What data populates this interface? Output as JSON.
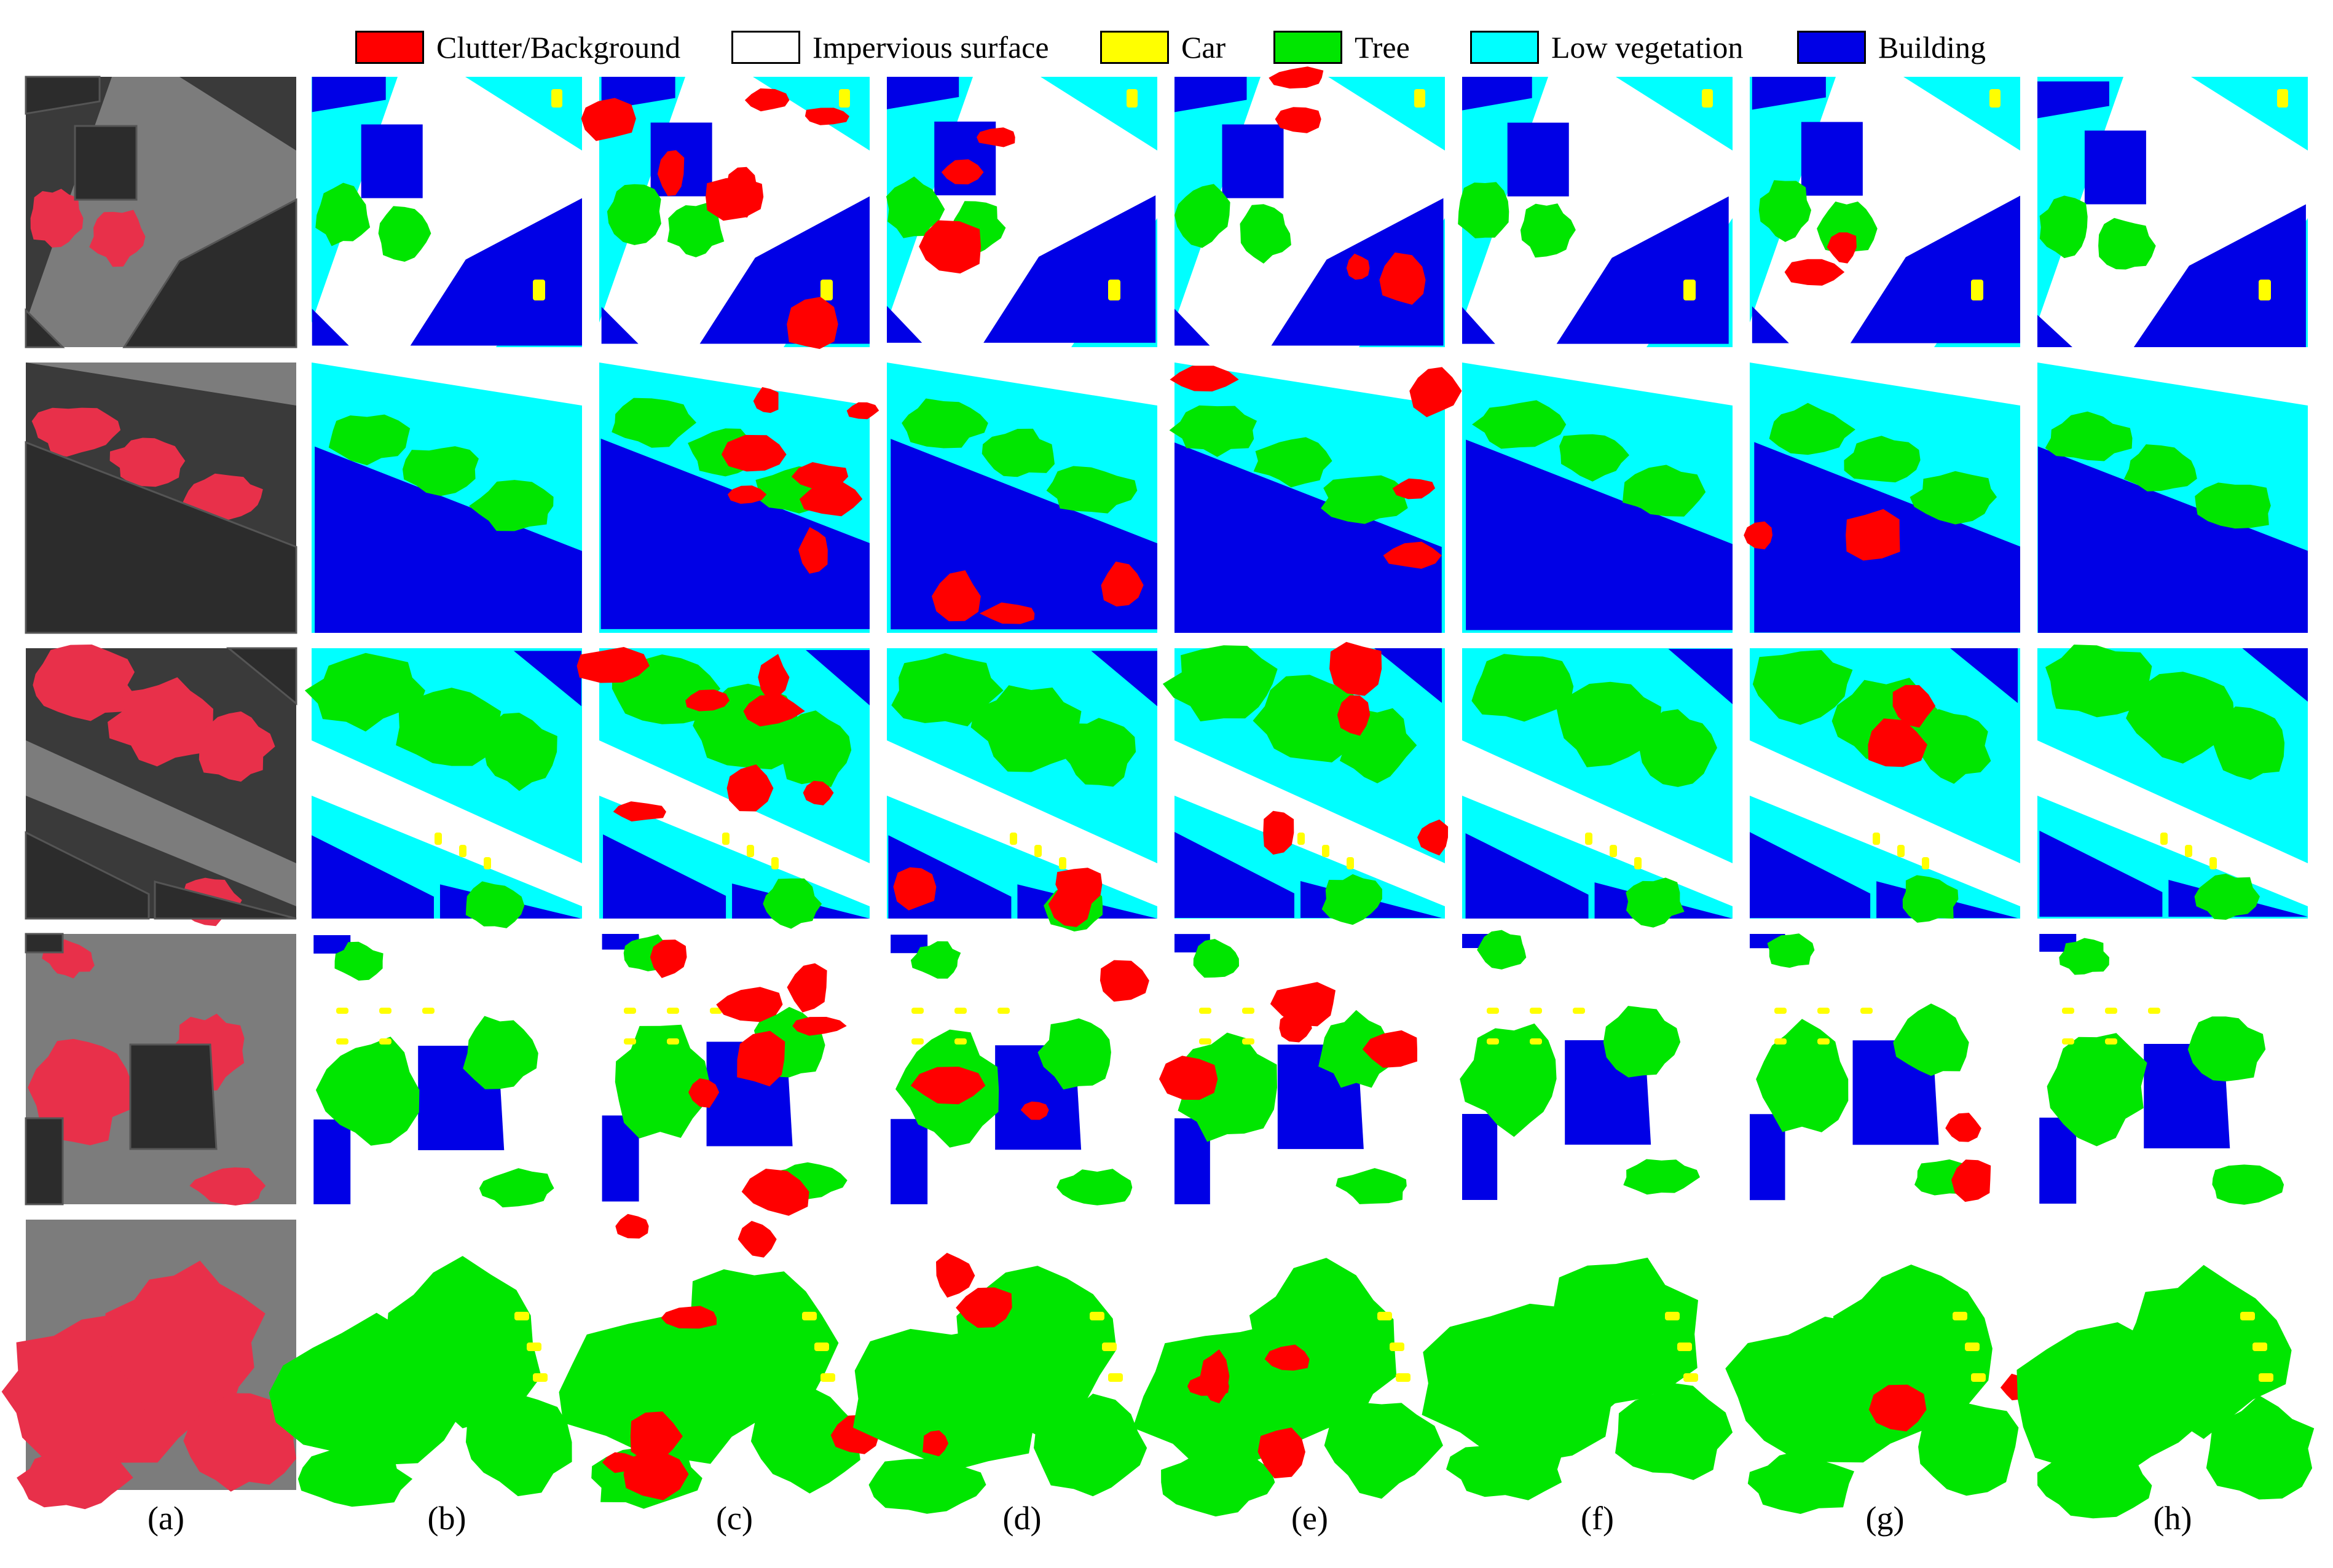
{
  "legend": [
    {
      "label": "Clutter/Background",
      "color": "#ff0000"
    },
    {
      "label": "Impervious surface",
      "color": "#ffffff"
    },
    {
      "label": "Car",
      "color": "#ffff00"
    },
    {
      "label": "Tree",
      "color": "#00e600"
    },
    {
      "label": "Low vegetation",
      "color": "#00ffff"
    },
    {
      "label": "Building",
      "color": "#0000e6"
    }
  ],
  "columns": [
    "(a)",
    "(b)",
    "(c)",
    "(d)",
    "(e)",
    "(f)",
    "(g)",
    "(h)"
  ],
  "rows": 5,
  "input_image_colors": {
    "vegetation_ir": "#e8304a",
    "road": "#7c7c7c",
    "roof": "#3a3a3a"
  }
}
